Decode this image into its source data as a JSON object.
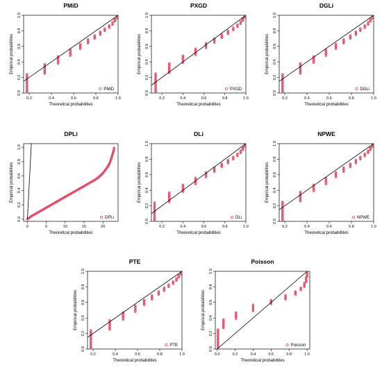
{
  "figure": {
    "colors": {
      "points": "#E0506A",
      "reference_line": "#000000",
      "axes": "#000000"
    }
  },
  "chart_data": [
    {
      "type": "scatter",
      "title": "PMiD",
      "xlabel": "Theoretical probabilities",
      "ylabel": "Empirical probabilities",
      "xlim": [
        0.15,
        1.0
      ],
      "ylim": [
        0.0,
        1.0
      ],
      "xticks": [
        0.2,
        0.4,
        0.6,
        0.8,
        1.0
      ],
      "xtick_labels": [
        "0.2",
        "0.4",
        "0.6",
        "0.8",
        "1.0"
      ],
      "yticks": [
        0.0,
        0.2,
        0.4,
        0.6,
        0.8,
        1.0
      ],
      "ytick_labels": [
        "0.0",
        "0.2",
        "0.4",
        "0.6",
        "0.8",
        "1.0"
      ],
      "reference_line": {
        "x": [
          0.15,
          1.0
        ],
        "y": [
          0.15,
          1.0
        ]
      },
      "steps": [
        {
          "x": 0.18,
          "y_low": 0.0,
          "y_high": 0.24
        },
        {
          "x": 0.34,
          "y_low": 0.25,
          "y_high": 0.37
        },
        {
          "x": 0.46,
          "y_low": 0.38,
          "y_high": 0.47
        },
        {
          "x": 0.57,
          "y_low": 0.48,
          "y_high": 0.56
        },
        {
          "x": 0.66,
          "y_low": 0.57,
          "y_high": 0.63
        },
        {
          "x": 0.73,
          "y_low": 0.64,
          "y_high": 0.69
        },
        {
          "x": 0.79,
          "y_low": 0.7,
          "y_high": 0.74
        },
        {
          "x": 0.84,
          "y_low": 0.75,
          "y_high": 0.79
        },
        {
          "x": 0.88,
          "y_low": 0.8,
          "y_high": 0.83
        },
        {
          "x": 0.92,
          "y_low": 0.84,
          "y_high": 0.87
        },
        {
          "x": 0.95,
          "y_low": 0.88,
          "y_high": 0.91
        },
        {
          "x": 0.97,
          "y_low": 0.92,
          "y_high": 0.95
        },
        {
          "x": 0.99,
          "y_low": 0.96,
          "y_high": 1.0
        }
      ],
      "legend": {
        "label": "PMiD",
        "position": "bottom-right"
      }
    },
    {
      "type": "scatter",
      "title": "PXGD",
      "xlabel": "Theoretical probabilities",
      "ylabel": "Empirical probabilities",
      "xlim": [
        0.1,
        1.0
      ],
      "ylim": [
        0.0,
        1.0
      ],
      "xticks": [
        0.2,
        0.4,
        0.6,
        0.8,
        1.0
      ],
      "xtick_labels": [
        "0.2",
        "0.4",
        "0.6",
        "0.8",
        "1.0"
      ],
      "yticks": [
        0.0,
        0.2,
        0.4,
        0.6,
        0.8,
        1.0
      ],
      "ytick_labels": [
        "0.0",
        "0.2",
        "0.4",
        "0.6",
        "0.8",
        "1.0"
      ],
      "reference_line": {
        "x": [
          0.1,
          1.0
        ],
        "y": [
          0.1,
          1.0
        ]
      },
      "steps": [
        {
          "x": 0.14,
          "y_low": 0.0,
          "y_high": 0.25
        },
        {
          "x": 0.27,
          "y_low": 0.26,
          "y_high": 0.38
        },
        {
          "x": 0.4,
          "y_low": 0.39,
          "y_high": 0.48
        },
        {
          "x": 0.52,
          "y_low": 0.49,
          "y_high": 0.57
        },
        {
          "x": 0.62,
          "y_low": 0.58,
          "y_high": 0.64
        },
        {
          "x": 0.7,
          "y_low": 0.65,
          "y_high": 0.7
        },
        {
          "x": 0.77,
          "y_low": 0.71,
          "y_high": 0.75
        },
        {
          "x": 0.83,
          "y_low": 0.76,
          "y_high": 0.8
        },
        {
          "x": 0.88,
          "y_low": 0.81,
          "y_high": 0.84
        },
        {
          "x": 0.92,
          "y_low": 0.85,
          "y_high": 0.88
        },
        {
          "x": 0.95,
          "y_low": 0.89,
          "y_high": 0.92
        },
        {
          "x": 0.97,
          "y_low": 0.93,
          "y_high": 0.96
        },
        {
          "x": 0.99,
          "y_low": 0.97,
          "y_high": 1.0
        }
      ],
      "legend": {
        "label": "PXGD",
        "position": "bottom-right"
      }
    },
    {
      "type": "scatter",
      "title": "DGLi",
      "xlabel": "Theoretical probabilities",
      "ylabel": "Empirical probabilities",
      "xlim": [
        0.15,
        1.0
      ],
      "ylim": [
        0.0,
        1.0
      ],
      "xticks": [
        0.2,
        0.4,
        0.6,
        0.8,
        1.0
      ],
      "xtick_labels": [
        "0.2",
        "0.4",
        "0.6",
        "0.8",
        "1.0"
      ],
      "yticks": [
        0.0,
        0.2,
        0.4,
        0.6,
        0.8,
        1.0
      ],
      "ytick_labels": [
        "0.0",
        "0.2",
        "0.4",
        "0.6",
        "0.8",
        "1.0"
      ],
      "reference_line": {
        "x": [
          0.15,
          1.0
        ],
        "y": [
          0.15,
          1.0
        ]
      },
      "steps": [
        {
          "x": 0.18,
          "y_low": 0.0,
          "y_high": 0.24
        },
        {
          "x": 0.34,
          "y_low": 0.25,
          "y_high": 0.38
        },
        {
          "x": 0.46,
          "y_low": 0.39,
          "y_high": 0.47
        },
        {
          "x": 0.57,
          "y_low": 0.48,
          "y_high": 0.56
        },
        {
          "x": 0.66,
          "y_low": 0.57,
          "y_high": 0.63
        },
        {
          "x": 0.73,
          "y_low": 0.64,
          "y_high": 0.69
        },
        {
          "x": 0.79,
          "y_low": 0.7,
          "y_high": 0.74
        },
        {
          "x": 0.84,
          "y_low": 0.75,
          "y_high": 0.79
        },
        {
          "x": 0.88,
          "y_low": 0.8,
          "y_high": 0.83
        },
        {
          "x": 0.92,
          "y_low": 0.84,
          "y_high": 0.87
        },
        {
          "x": 0.95,
          "y_low": 0.88,
          "y_high": 0.91
        },
        {
          "x": 0.97,
          "y_low": 0.92,
          "y_high": 0.95
        },
        {
          "x": 0.99,
          "y_low": 0.96,
          "y_high": 1.0
        }
      ],
      "legend": {
        "label": "DGLi",
        "position": "bottom-right"
      }
    },
    {
      "type": "scatter",
      "title": "DPLi",
      "xlabel": "Theoretical probabilities",
      "ylabel": "Empirical probabilities",
      "xlim": [
        -1,
        24
      ],
      "ylim": [
        -0.03,
        1.05
      ],
      "xticks": [
        0,
        5,
        10,
        15,
        20
      ],
      "xtick_labels": [
        "0",
        "5",
        "10",
        "15",
        "20"
      ],
      "yticks": [
        0.0,
        0.2,
        0.4,
        0.6,
        0.8,
        1.0
      ],
      "ytick_labels": [
        "0.0",
        "0.2",
        "0.4",
        "0.6",
        "0.8",
        "1.0"
      ],
      "reference_line": {
        "x": [
          0,
          1.05
        ],
        "y": [
          0,
          1.05
        ]
      },
      "curve": {
        "x": [
          0,
          1,
          2,
          3,
          4,
          5,
          6,
          7,
          8,
          9,
          10,
          11,
          12,
          13,
          14,
          15,
          16,
          17,
          18,
          19,
          20,
          21,
          21.5,
          22,
          22.3,
          22.6,
          22.8,
          23.0
        ],
        "y": [
          0.0,
          0.04,
          0.07,
          0.1,
          0.13,
          0.16,
          0.19,
          0.22,
          0.25,
          0.28,
          0.31,
          0.34,
          0.37,
          0.4,
          0.43,
          0.46,
          0.49,
          0.52,
          0.55,
          0.59,
          0.64,
          0.71,
          0.75,
          0.81,
          0.86,
          0.91,
          0.95,
          1.0
        ]
      },
      "legend": {
        "label": "DPLi",
        "position": "bottom-right"
      }
    },
    {
      "type": "scatter",
      "title": "DLi",
      "xlabel": "Theoretical probabilities",
      "ylabel": "Empirical probabilities",
      "xlim": [
        0.1,
        1.0
      ],
      "ylim": [
        0.0,
        1.0
      ],
      "xticks": [
        0.2,
        0.4,
        0.6,
        0.8,
        1.0
      ],
      "xtick_labels": [
        "0.2",
        "0.4",
        "0.6",
        "0.8",
        "1.0"
      ],
      "yticks": [
        0.0,
        0.2,
        0.4,
        0.6,
        0.8,
        1.0
      ],
      "ytick_labels": [
        "0.0",
        "0.2",
        "0.4",
        "0.6",
        "0.8",
        "1.0"
      ],
      "reference_line": {
        "x": [
          0.1,
          1.0
        ],
        "y": [
          0.1,
          1.0
        ]
      },
      "steps": [
        {
          "x": 0.13,
          "y_low": 0.0,
          "y_high": 0.24
        },
        {
          "x": 0.27,
          "y_low": 0.25,
          "y_high": 0.37
        },
        {
          "x": 0.4,
          "y_low": 0.38,
          "y_high": 0.47
        },
        {
          "x": 0.52,
          "y_low": 0.48,
          "y_high": 0.56
        },
        {
          "x": 0.62,
          "y_low": 0.57,
          "y_high": 0.63
        },
        {
          "x": 0.7,
          "y_low": 0.64,
          "y_high": 0.69
        },
        {
          "x": 0.77,
          "y_low": 0.7,
          "y_high": 0.74
        },
        {
          "x": 0.83,
          "y_low": 0.75,
          "y_high": 0.79
        },
        {
          "x": 0.88,
          "y_low": 0.8,
          "y_high": 0.83
        },
        {
          "x": 0.92,
          "y_low": 0.84,
          "y_high": 0.87
        },
        {
          "x": 0.95,
          "y_low": 0.88,
          "y_high": 0.91
        },
        {
          "x": 0.97,
          "y_low": 0.92,
          "y_high": 0.95
        },
        {
          "x": 0.99,
          "y_low": 0.96,
          "y_high": 1.0
        }
      ],
      "legend": {
        "label": "DLi",
        "position": "bottom-right"
      }
    },
    {
      "type": "scatter",
      "title": "NPWE",
      "xlabel": "Theoretical probabilities",
      "ylabel": "Empirical probabilities",
      "xlim": [
        0.15,
        1.0
      ],
      "ylim": [
        0.0,
        1.0
      ],
      "xticks": [
        0.2,
        0.4,
        0.6,
        0.8,
        1.0
      ],
      "xtick_labels": [
        "0.2",
        "0.4",
        "0.6",
        "0.8",
        "1.0"
      ],
      "yticks": [
        0.0,
        0.2,
        0.4,
        0.6,
        0.8,
        1.0
      ],
      "ytick_labels": [
        "0.0",
        "0.2",
        "0.4",
        "0.6",
        "0.8",
        "1.0"
      ],
      "reference_line": {
        "x": [
          0.15,
          1.0
        ],
        "y": [
          0.15,
          1.0
        ]
      },
      "steps": [
        {
          "x": 0.18,
          "y_low": 0.0,
          "y_high": 0.25
        },
        {
          "x": 0.34,
          "y_low": 0.26,
          "y_high": 0.38
        },
        {
          "x": 0.46,
          "y_low": 0.39,
          "y_high": 0.47
        },
        {
          "x": 0.57,
          "y_low": 0.48,
          "y_high": 0.56
        },
        {
          "x": 0.66,
          "y_low": 0.57,
          "y_high": 0.63
        },
        {
          "x": 0.73,
          "y_low": 0.64,
          "y_high": 0.69
        },
        {
          "x": 0.79,
          "y_low": 0.7,
          "y_high": 0.74
        },
        {
          "x": 0.84,
          "y_low": 0.75,
          "y_high": 0.79
        },
        {
          "x": 0.88,
          "y_low": 0.8,
          "y_high": 0.83
        },
        {
          "x": 0.92,
          "y_low": 0.84,
          "y_high": 0.87
        },
        {
          "x": 0.95,
          "y_low": 0.88,
          "y_high": 0.91
        },
        {
          "x": 0.97,
          "y_low": 0.92,
          "y_high": 0.95
        },
        {
          "x": 0.99,
          "y_low": 0.96,
          "y_high": 1.0
        }
      ],
      "legend": {
        "label": "NPWE",
        "position": "bottom-right"
      }
    },
    {
      "type": "scatter",
      "title": "PTE",
      "xlabel": "Theoretical probabilities",
      "ylabel": "Empirical probabilities",
      "xlim": [
        0.15,
        1.0
      ],
      "ylim": [
        0.0,
        1.0
      ],
      "xticks": [
        0.2,
        0.4,
        0.6,
        0.8,
        1.0
      ],
      "xtick_labels": [
        "0.2",
        "0.4",
        "0.6",
        "0.8",
        "1.0"
      ],
      "yticks": [
        0.0,
        0.2,
        0.4,
        0.6,
        0.8,
        1.0
      ],
      "ytick_labels": [
        "0.0",
        "0.2",
        "0.4",
        "0.6",
        "0.8",
        "1.0"
      ],
      "reference_line": {
        "x": [
          0.15,
          1.0
        ],
        "y": [
          0.15,
          1.0
        ]
      },
      "steps": [
        {
          "x": 0.18,
          "y_low": 0.0,
          "y_high": 0.24
        },
        {
          "x": 0.35,
          "y_low": 0.25,
          "y_high": 0.37
        },
        {
          "x": 0.47,
          "y_low": 0.38,
          "y_high": 0.47
        },
        {
          "x": 0.58,
          "y_low": 0.48,
          "y_high": 0.56
        },
        {
          "x": 0.66,
          "y_low": 0.57,
          "y_high": 0.63
        },
        {
          "x": 0.73,
          "y_low": 0.64,
          "y_high": 0.69
        },
        {
          "x": 0.79,
          "y_low": 0.7,
          "y_high": 0.74
        },
        {
          "x": 0.84,
          "y_low": 0.75,
          "y_high": 0.79
        },
        {
          "x": 0.88,
          "y_low": 0.8,
          "y_high": 0.83
        },
        {
          "x": 0.92,
          "y_low": 0.84,
          "y_high": 0.87
        },
        {
          "x": 0.95,
          "y_low": 0.88,
          "y_high": 0.91
        },
        {
          "x": 0.97,
          "y_low": 0.92,
          "y_high": 0.95
        },
        {
          "x": 0.99,
          "y_low": 0.96,
          "y_high": 1.0
        }
      ],
      "legend": {
        "label": "PTE",
        "position": "bottom-right"
      }
    },
    {
      "type": "scatter",
      "title": "Poisson",
      "xlabel": "Theoretical probabilities",
      "ylabel": "Empirical probabilities",
      "xlim": [
        -0.02,
        1.03
      ],
      "ylim": [
        0.0,
        1.0
      ],
      "xticks": [
        0.0,
        0.2,
        0.4,
        0.6,
        0.8,
        1.0
      ],
      "xtick_labels": [
        "0.0",
        "0.2",
        "0.4",
        "0.6",
        "0.8",
        "1.0"
      ],
      "yticks": [
        0.0,
        0.2,
        0.4,
        0.6,
        0.8,
        1.0
      ],
      "ytick_labels": [
        "0.0",
        "0.2",
        "0.4",
        "0.6",
        "0.8",
        "1.0"
      ],
      "reference_line": {
        "x": [
          0.0,
          1.0
        ],
        "y": [
          0.0,
          1.0
        ]
      },
      "steps": [
        {
          "x": 0.01,
          "y_low": 0.0,
          "y_high": 0.25
        },
        {
          "x": 0.07,
          "y_low": 0.27,
          "y_high": 0.38
        },
        {
          "x": 0.21,
          "y_low": 0.39,
          "y_high": 0.47
        },
        {
          "x": 0.4,
          "y_low": 0.49,
          "y_high": 0.57
        },
        {
          "x": 0.6,
          "y_low": 0.58,
          "y_high": 0.63
        },
        {
          "x": 0.76,
          "y_low": 0.64,
          "y_high": 0.69
        },
        {
          "x": 0.87,
          "y_low": 0.7,
          "y_high": 0.74
        },
        {
          "x": 0.93,
          "y_low": 0.76,
          "y_high": 0.79
        },
        {
          "x": 0.97,
          "y_low": 0.8,
          "y_high": 0.85
        },
        {
          "x": 0.99,
          "y_low": 0.86,
          "y_high": 0.92
        },
        {
          "x": 1.0,
          "y_low": 0.93,
          "y_high": 1.0
        }
      ],
      "legend": {
        "label": "Poisson",
        "position": "bottom-right"
      }
    }
  ]
}
